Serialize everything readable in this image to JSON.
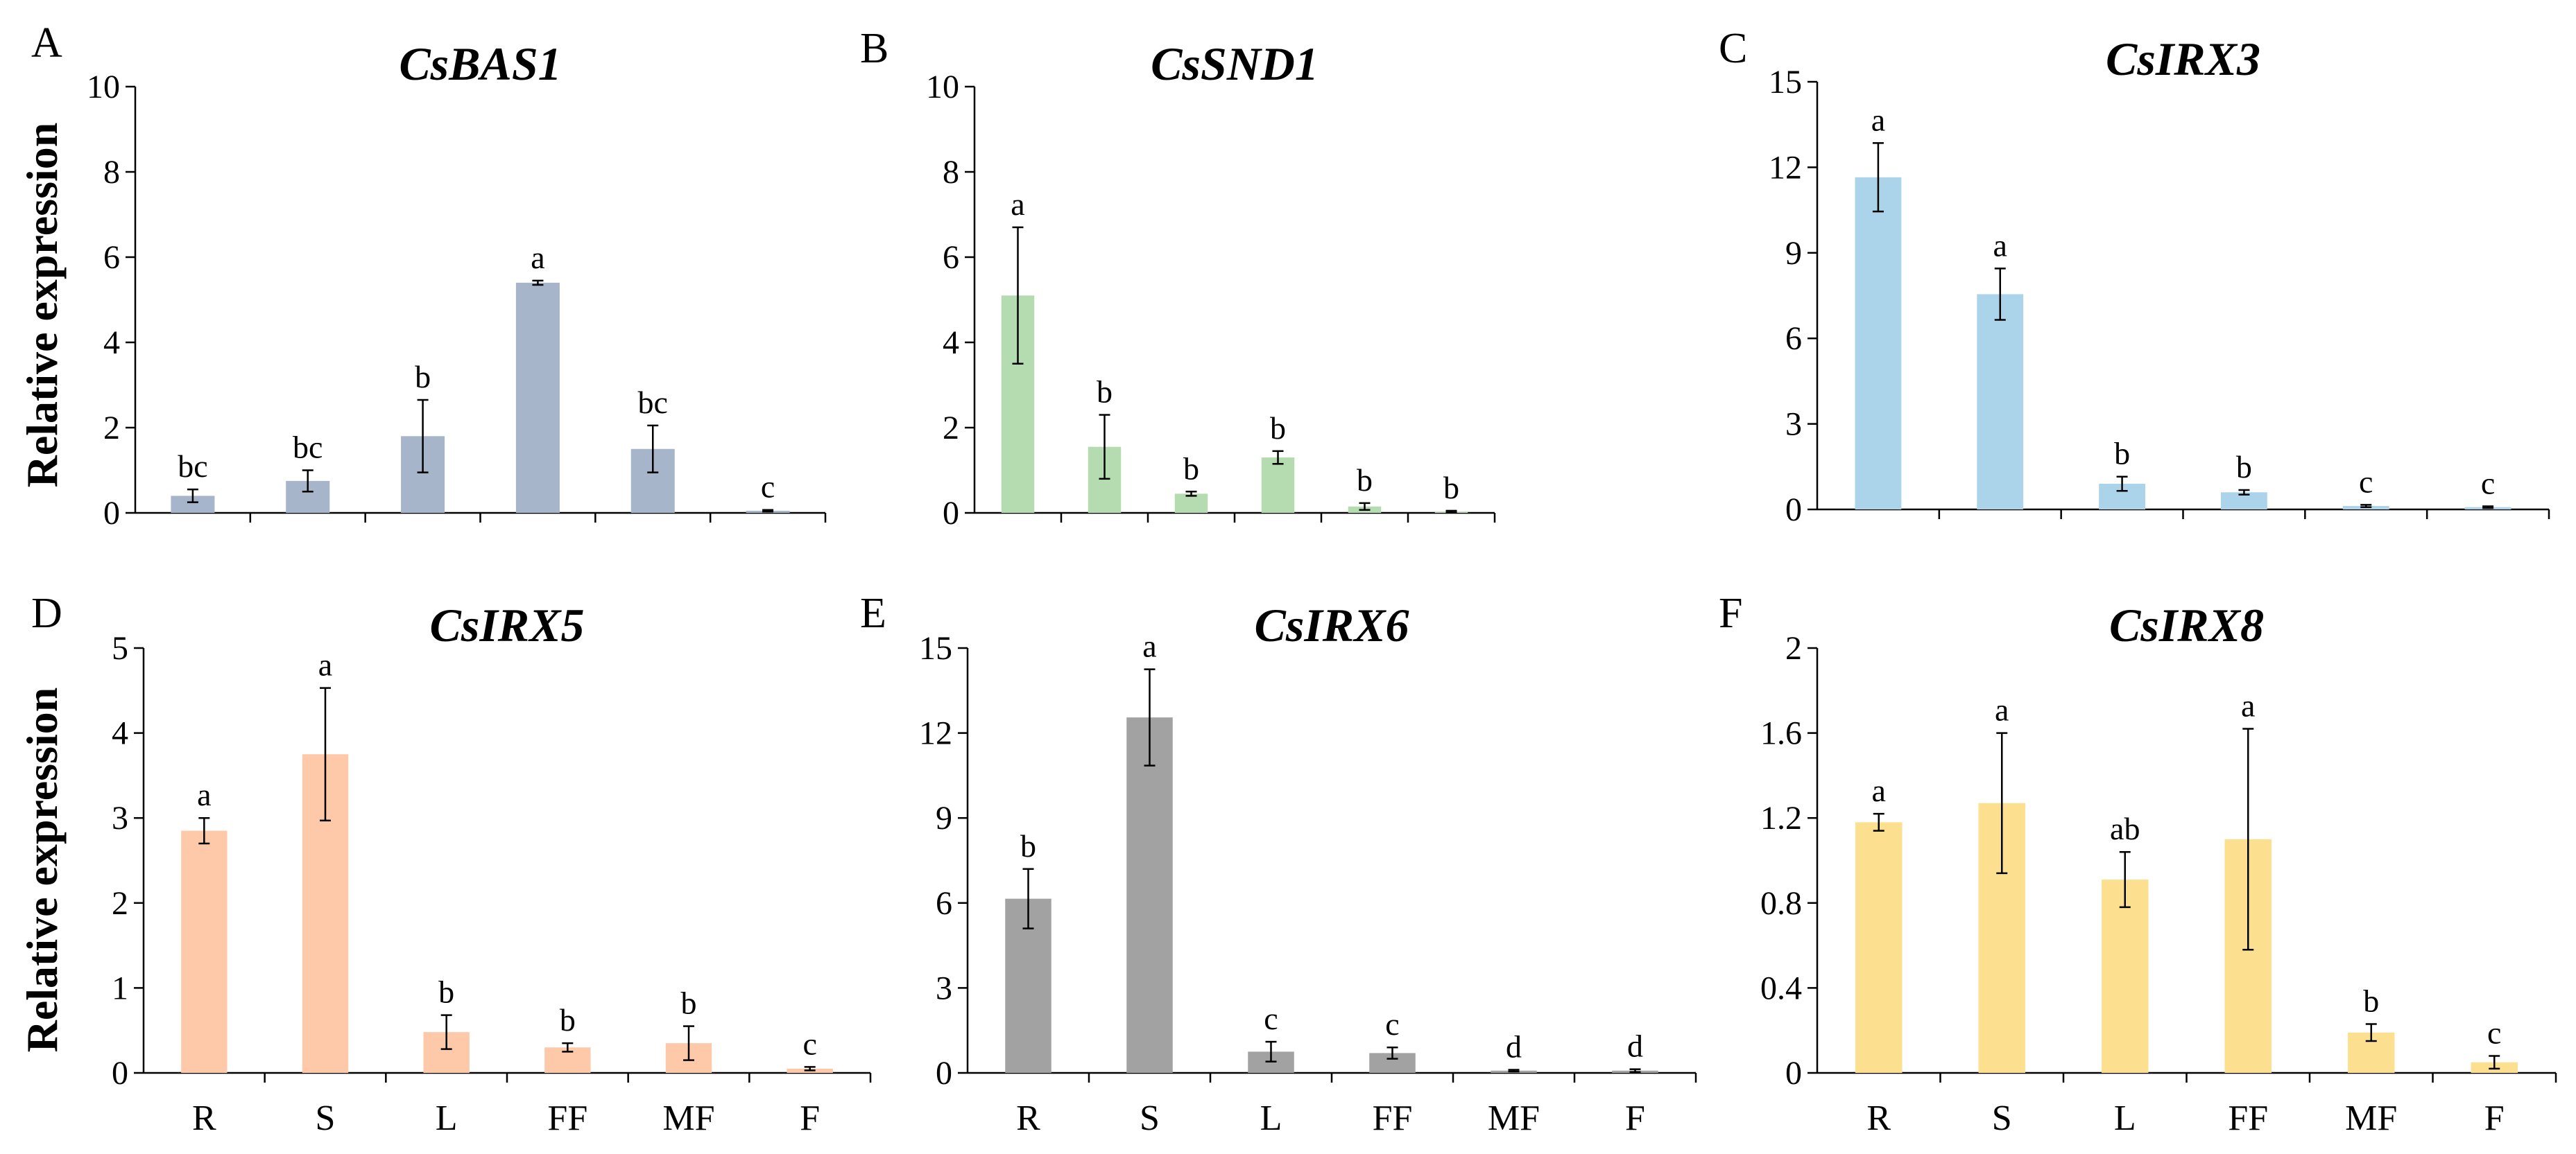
{
  "y_axis_label": "Relative expression",
  "chart_data": [
    {
      "type": "bar",
      "panel": "A",
      "title": "CsBAS1",
      "categories": [
        "R",
        "S",
        "L",
        "FF",
        "MF",
        "F"
      ],
      "values": [
        0.4,
        0.75,
        1.8,
        5.4,
        1.5,
        0.05
      ],
      "errors": [
        0.15,
        0.25,
        0.85,
        0.05,
        0.55,
        0.02
      ],
      "significance": [
        "bc",
        "bc",
        "b",
        "a",
        "bc",
        "c"
      ],
      "ylim": [
        0,
        10
      ],
      "yticks": [
        "0",
        "2",
        "4",
        "6",
        "8",
        "10"
      ],
      "color": "#a6b5c9",
      "show_category_labels": false
    },
    {
      "type": "bar",
      "panel": "B",
      "title": "CsSND1",
      "categories": [
        "R",
        "S",
        "L",
        "FF",
        "MF",
        "F"
      ],
      "values": [
        5.1,
        1.55,
        0.45,
        1.3,
        0.15,
        0.03
      ],
      "errors": [
        1.6,
        0.75,
        0.05,
        0.15,
        0.08,
        0.02
      ],
      "significance": [
        "a",
        "b",
        "b",
        "b",
        "b",
        "b"
      ],
      "ylim": [
        0,
        10
      ],
      "yticks": [
        "0",
        "2",
        "4",
        "6",
        "8",
        "10"
      ],
      "color": "#b5dcb0",
      "show_category_labels": false
    },
    {
      "type": "bar",
      "panel": "C",
      "title": "CsIRX3",
      "categories": [
        "R",
        "S",
        "L",
        "FF",
        "MF",
        "F"
      ],
      "values": [
        11.65,
        7.55,
        0.9,
        0.6,
        0.12,
        0.08
      ],
      "errors": [
        1.2,
        0.9,
        0.25,
        0.08,
        0.04,
        0.03
      ],
      "significance": [
        "a",
        "a",
        "b",
        "b",
        "c",
        "c"
      ],
      "ylim": [
        0,
        15
      ],
      "yticks": [
        "0",
        "3",
        "6",
        "9",
        "12",
        "15"
      ],
      "color": "#abd3ea",
      "show_category_labels": false
    },
    {
      "type": "bar",
      "panel": "D",
      "title": "CsIRX5",
      "categories": [
        "R",
        "S",
        "L",
        "FF",
        "MF",
        "F"
      ],
      "values": [
        2.85,
        3.75,
        0.48,
        0.3,
        0.35,
        0.05
      ],
      "errors": [
        0.15,
        0.78,
        0.2,
        0.05,
        0.2,
        0.02
      ],
      "significance": [
        "a",
        "a",
        "b",
        "b",
        "b",
        "c"
      ],
      "ylim": [
        0,
        5
      ],
      "yticks": [
        "0",
        "1",
        "2",
        "3",
        "4",
        "5"
      ],
      "color": "#fec9a9",
      "show_category_labels": true
    },
    {
      "type": "bar",
      "panel": "E",
      "title": "CsIRX6",
      "categories": [
        "R",
        "S",
        "L",
        "FF",
        "MF",
        "F"
      ],
      "values": [
        6.15,
        12.55,
        0.75,
        0.7,
        0.08,
        0.08
      ],
      "errors": [
        1.05,
        1.7,
        0.35,
        0.2,
        0.03,
        0.05
      ],
      "significance": [
        "b",
        "a",
        "c",
        "c",
        "d",
        "d"
      ],
      "ylim": [
        0,
        15
      ],
      "yticks": [
        "0",
        "3",
        "6",
        "9",
        "12",
        "15"
      ],
      "color": "#a2a2a2",
      "show_category_labels": true
    },
    {
      "type": "bar",
      "panel": "F",
      "title": "CsIRX8",
      "categories": [
        "R",
        "S",
        "L",
        "FF",
        "MF",
        "F"
      ],
      "values": [
        1.18,
        1.27,
        0.91,
        1.1,
        0.19,
        0.05
      ],
      "errors": [
        0.04,
        0.33,
        0.13,
        0.52,
        0.04,
        0.03
      ],
      "significance": [
        "a",
        "a",
        "ab",
        "a",
        "b",
        "c"
      ],
      "ylim": [
        0,
        2
      ],
      "yticks": [
        "0",
        "0.4",
        "0.8",
        "1.2",
        "1.6",
        "2"
      ],
      "color": "#fde08f",
      "show_category_labels": true
    }
  ]
}
